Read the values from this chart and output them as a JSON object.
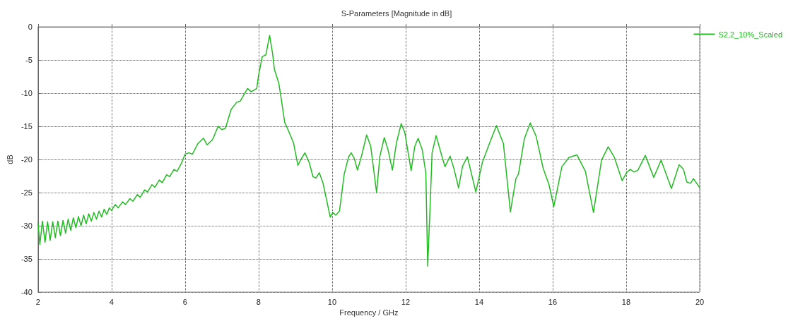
{
  "chart_data": {
    "type": "line",
    "title": "S-Parameters [Magnitude in dB]",
    "xlabel": "Frequency / GHz",
    "ylabel": "dB",
    "xlim": [
      2,
      20
    ],
    "xticks": [
      2,
      4,
      6,
      8,
      10,
      12,
      14,
      16,
      18,
      20
    ],
    "ylim": [
      -40,
      0
    ],
    "yticks": [
      -40,
      -35,
      -30,
      -25,
      -20,
      -15,
      -10,
      -5,
      0
    ],
    "grid": true,
    "legend": "top right",
    "marker": "none",
    "line_style": "solid",
    "series": [
      {
        "name": "S2,2_10%_Scaled",
        "color": "#22bb22",
        "x": [
          2.0,
          2.05,
          2.12,
          2.19,
          2.26,
          2.33,
          2.4,
          2.47,
          2.54,
          2.61,
          2.68,
          2.75,
          2.82,
          2.89,
          2.96,
          3.03,
          3.1,
          3.17,
          3.24,
          3.31,
          3.38,
          3.45,
          3.52,
          3.59,
          3.66,
          3.73,
          3.8,
          3.87,
          3.94,
          4.0,
          4.1,
          4.18,
          4.3,
          4.38,
          4.5,
          4.58,
          4.7,
          4.78,
          4.9,
          4.98,
          5.1,
          5.18,
          5.3,
          5.38,
          5.5,
          5.58,
          5.7,
          5.78,
          5.9,
          6.0,
          6.1,
          6.2,
          6.35,
          6.5,
          6.6,
          6.75,
          6.9,
          7.0,
          7.1,
          7.25,
          7.4,
          7.5,
          7.7,
          7.8,
          7.95,
          8.0,
          8.1,
          8.2,
          8.3,
          8.38,
          8.43,
          8.55,
          8.62,
          8.71,
          8.8,
          8.95,
          9.07,
          9.15,
          9.26,
          9.38,
          9.48,
          9.56,
          9.65,
          9.75,
          9.95,
          10.02,
          10.1,
          10.2,
          10.33,
          10.45,
          10.52,
          10.6,
          10.69,
          10.8,
          10.94,
          11.05,
          11.21,
          11.3,
          11.42,
          11.52,
          11.64,
          11.75,
          11.88,
          11.98,
          12.15,
          12.25,
          12.34,
          12.45,
          12.55,
          12.6,
          12.66,
          12.72,
          12.83,
          12.95,
          13.07,
          13.21,
          13.32,
          13.44,
          13.55,
          13.68,
          13.91,
          14.09,
          14.28,
          14.47,
          14.66,
          14.85,
          15.0,
          15.07,
          15.23,
          15.39,
          15.55,
          15.74,
          15.9,
          16.03,
          16.12,
          16.25,
          16.44,
          16.66,
          16.89,
          17.11,
          17.33,
          17.51,
          17.68,
          17.89,
          18.01,
          18.11,
          18.22,
          18.32,
          18.52,
          18.75,
          18.95,
          19.23,
          19.44,
          19.56,
          19.65,
          19.75,
          19.83,
          19.97,
          20.0
        ],
        "values": [
          -29.5,
          -32.8,
          -29.3,
          -32.5,
          -29.4,
          -32.2,
          -29.4,
          -31.8,
          -29.3,
          -31.5,
          -29.2,
          -31.1,
          -29.0,
          -30.7,
          -28.8,
          -30.3,
          -28.6,
          -30.0,
          -28.4,
          -29.7,
          -28.2,
          -29.3,
          -28.0,
          -29.0,
          -27.8,
          -28.7,
          -27.5,
          -28.3,
          -27.3,
          -27.7,
          -26.8,
          -27.3,
          -26.4,
          -26.8,
          -25.9,
          -26.3,
          -25.3,
          -25.7,
          -24.6,
          -24.9,
          -23.8,
          -24.2,
          -23.1,
          -23.5,
          -22.3,
          -22.6,
          -21.5,
          -21.8,
          -20.6,
          -19.2,
          -19.0,
          -19.2,
          -17.6,
          -16.8,
          -17.8,
          -17.0,
          -15.0,
          -15.5,
          -15.3,
          -12.5,
          -11.4,
          -11.2,
          -9.3,
          -9.8,
          -9.3,
          -7.3,
          -4.5,
          -4.2,
          -1.3,
          -4.0,
          -6.4,
          -8.5,
          -11.0,
          -14.4,
          -15.5,
          -17.5,
          -20.9,
          -20.0,
          -19.0,
          -20.5,
          -22.6,
          -22.8,
          -22.0,
          -23.5,
          -28.7,
          -28.0,
          -28.4,
          -27.8,
          -22.2,
          -19.6,
          -19.0,
          -19.8,
          -21.6,
          -19.5,
          -16.3,
          -18.0,
          -25.0,
          -19.5,
          -16.7,
          -18.5,
          -21.6,
          -17.5,
          -14.6,
          -16.0,
          -21.7,
          -18.0,
          -16.8,
          -18.5,
          -22.0,
          -36.1,
          -28.0,
          -19.0,
          -16.4,
          -18.8,
          -21.1,
          -19.5,
          -21.5,
          -24.3,
          -21.0,
          -19.6,
          -24.9,
          -20.4,
          -17.6,
          -14.9,
          -17.6,
          -27.9,
          -22.9,
          -22.2,
          -16.9,
          -14.5,
          -16.5,
          -21.3,
          -23.8,
          -27.1,
          -24.7,
          -21.1,
          -19.7,
          -19.3,
          -21.8,
          -28.0,
          -20.1,
          -18.1,
          -19.7,
          -23.2,
          -22.0,
          -21.5,
          -21.9,
          -21.6,
          -19.4,
          -22.7,
          -20.1,
          -24.4,
          -20.8,
          -21.5,
          -23.4,
          -23.6,
          -22.9,
          -24.0,
          -24.3
        ]
      }
    ]
  }
}
